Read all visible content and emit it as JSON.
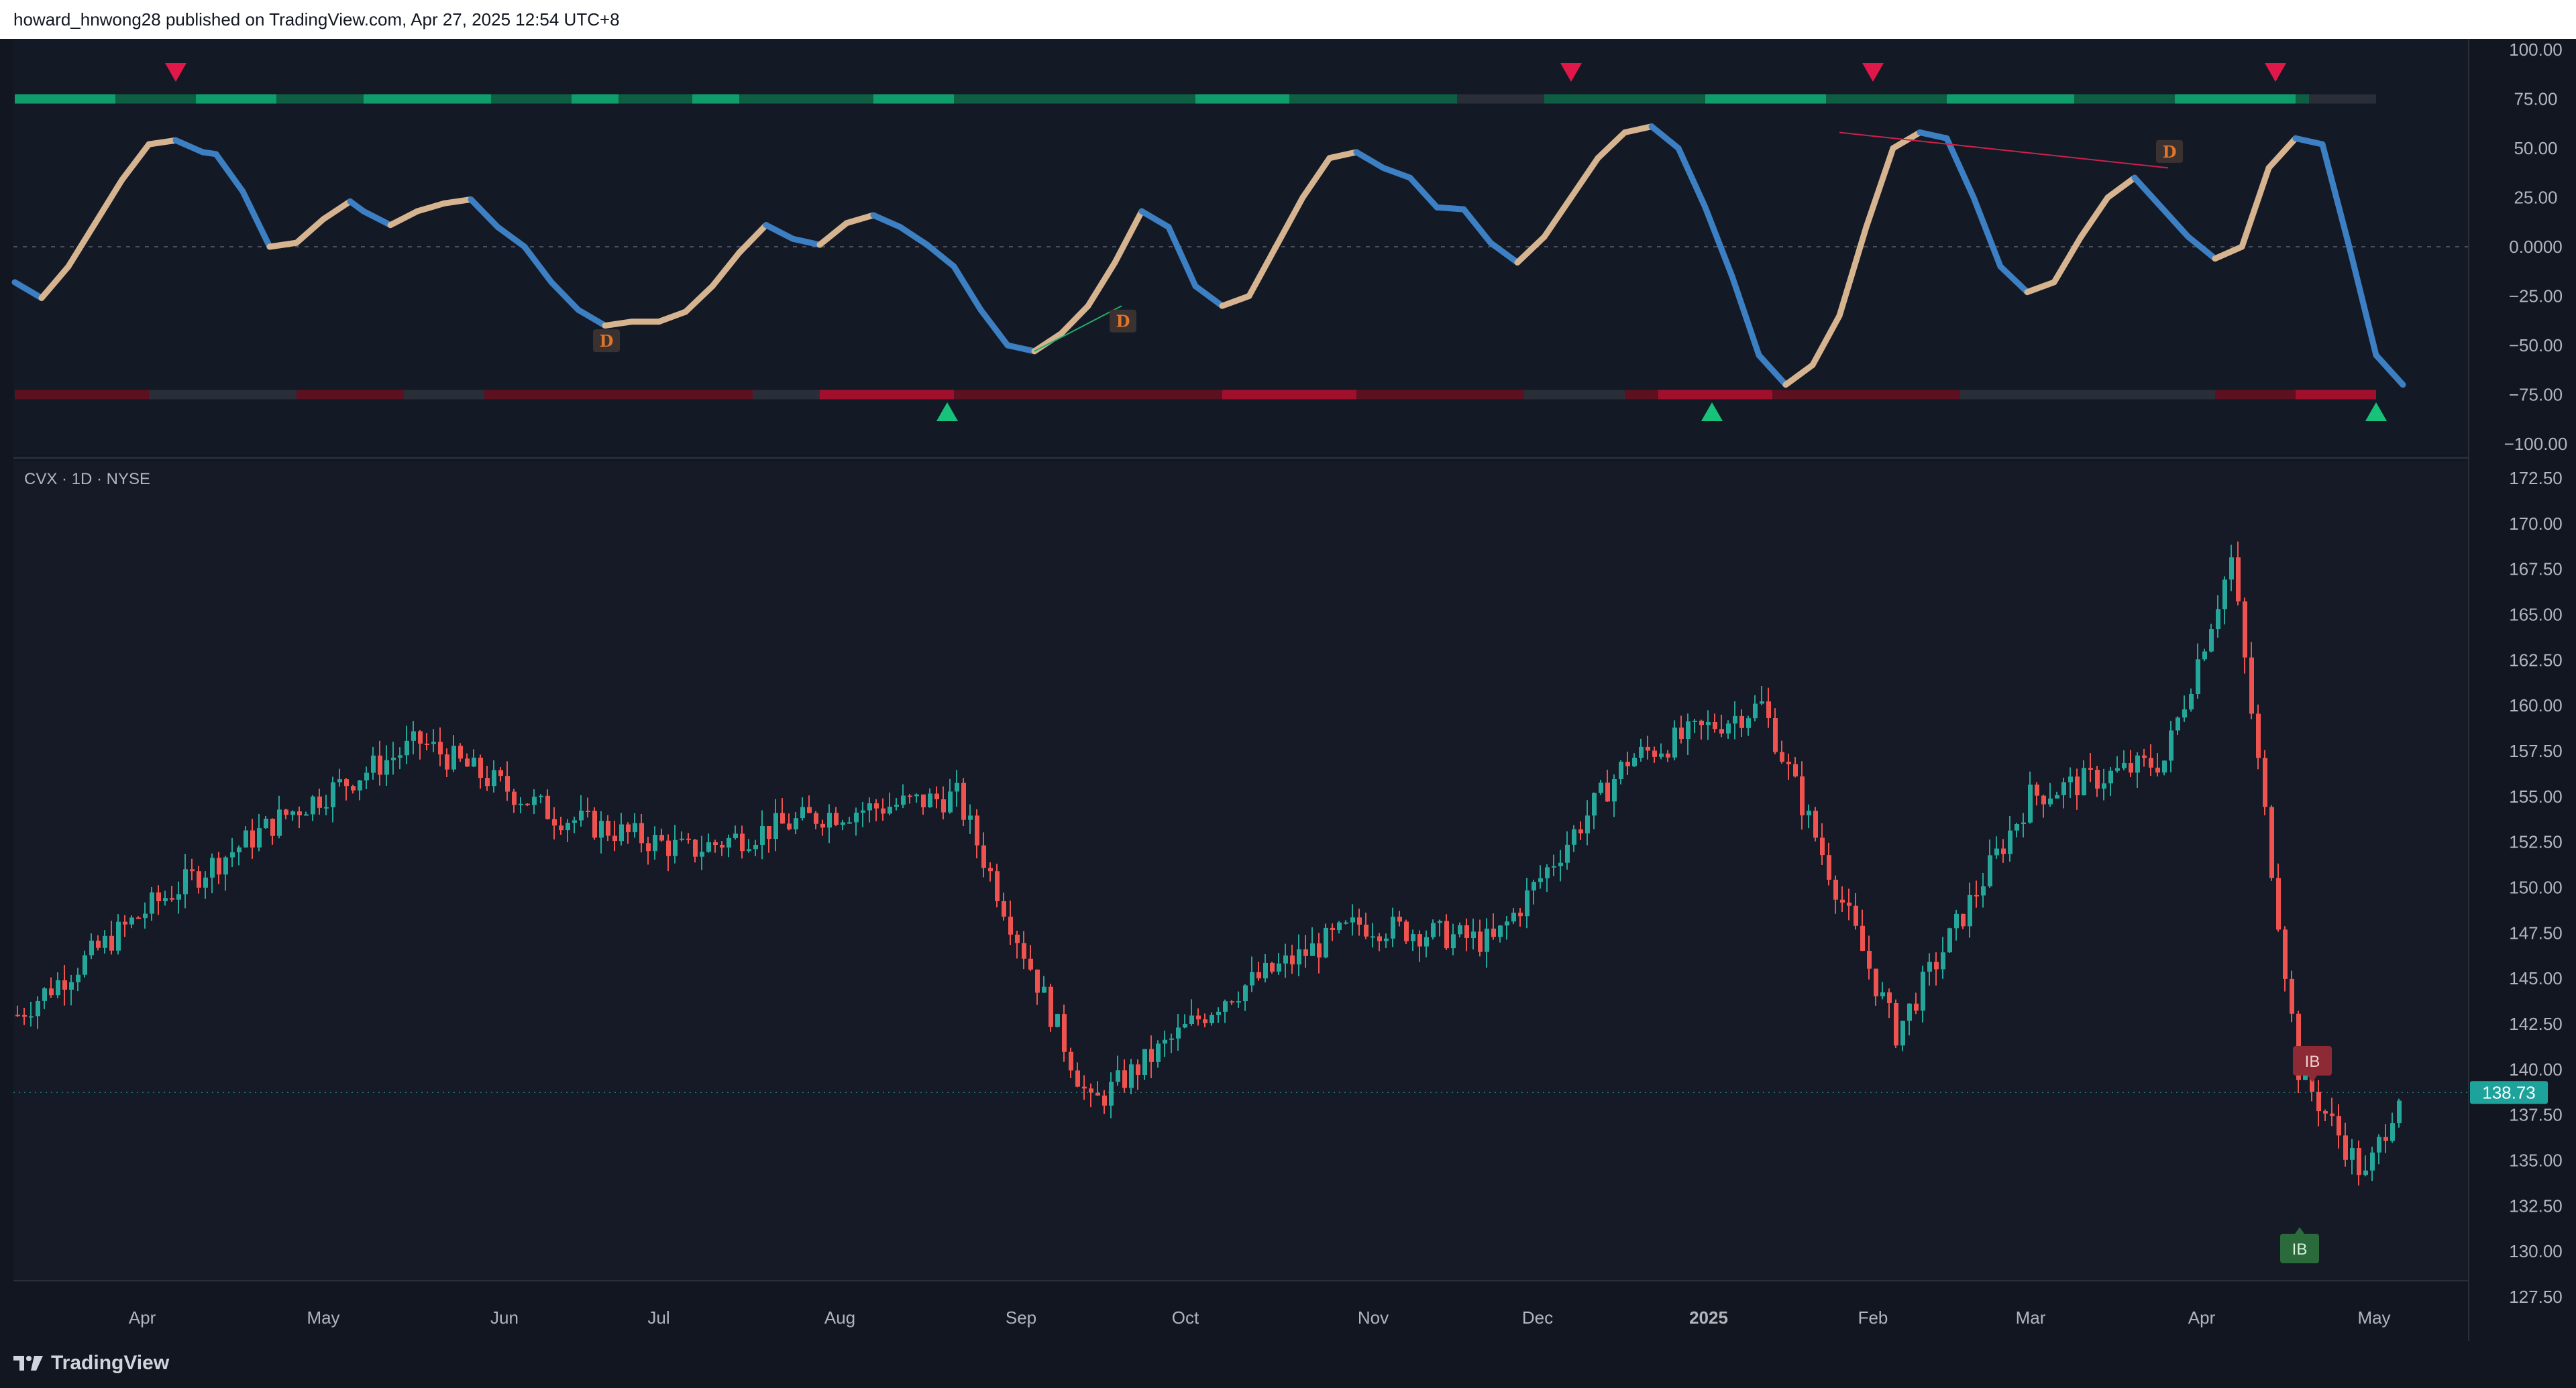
{
  "header": {
    "publisher_line": "howard_hnwong28 published on TradingView.com, Apr 27, 2025 12:54 UTC+8"
  },
  "footer": {
    "brand": "TradingView"
  },
  "colors": {
    "background": "#121620",
    "up_candle": "#26a69a",
    "down_candle": "#ef5350",
    "oscillator_up": "#d6b48f",
    "oscillator_down": "#3c7fc3",
    "band_green_strong": "#0f9d6c",
    "band_green_dark": "#0d5e43",
    "band_red_strong": "#a0102c",
    "band_red_dark": "#5c1020",
    "marker_sell": "#e0184a",
    "marker_buy": "#17c37b",
    "ib_bear": "#8e2a35",
    "ib_bull": "#2b6a3a",
    "last_price": "#1ea39c"
  },
  "chart_data": [
    {
      "type": "line",
      "name": "oscillator",
      "ylim": [
        -100,
        100
      ],
      "ticks": [
        "100.00",
        "75.00",
        "50.00",
        "25.00",
        "0.0000",
        "−25.00",
        "−50.00",
        "−75.00",
        "−100.00"
      ],
      "tick_values": [
        100,
        75,
        50,
        25,
        0,
        -25,
        -50,
        -75,
        -100
      ],
      "zero_line": true,
      "series": [
        {
          "x": [
            0,
            4,
            8,
            12,
            16,
            20,
            24,
            28,
            30,
            34,
            38,
            42,
            46,
            50,
            52,
            56,
            60,
            64,
            68,
            72,
            76,
            80,
            84,
            88,
            92,
            96,
            100,
            104,
            108,
            112,
            116,
            120,
            124,
            128,
            132,
            136,
            140,
            144,
            148,
            152,
            156,
            160,
            164,
            168,
            172,
            176,
            180,
            184,
            188,
            192,
            196,
            200,
            204,
            208,
            212,
            216,
            220,
            224,
            228,
            232,
            236,
            240,
            244,
            248,
            252,
            256,
            260,
            264,
            268,
            272,
            276,
            280,
            284,
            288,
            292,
            296,
            300,
            304,
            308,
            312,
            316,
            320,
            324,
            328,
            332,
            336,
            340,
            344,
            348,
            352,
            356
          ],
          "values": [
            -18,
            -26,
            -10,
            12,
            34,
            52,
            54,
            48,
            47,
            28,
            0,
            2,
            14,
            23,
            18,
            11,
            18,
            22,
            24,
            10,
            0,
            -18,
            -32,
            -40,
            -38,
            -38,
            -33,
            -20,
            -3,
            11,
            4,
            1,
            12,
            16,
            10,
            1,
            -10,
            -32,
            -50,
            -53,
            -44,
            -30,
            -8,
            18,
            10,
            -20,
            -30,
            -25,
            0,
            25,
            45,
            48,
            40,
            35,
            20,
            19,
            2,
            -8,
            5,
            25,
            45,
            58,
            61,
            50,
            20,
            -15,
            -55,
            -70,
            -60,
            -35,
            10,
            50,
            58,
            55,
            25,
            -10,
            -23,
            -18,
            5,
            25,
            35,
            20,
            5,
            -6,
            0,
            40,
            55,
            52,
            0,
            -55,
            -70
          ]
        }
      ],
      "divergence_labels": [
        "D",
        "D",
        "D"
      ],
      "sell_markers": 4,
      "buy_markers": 3
    },
    {
      "type": "candlestick",
      "name": "CVX · 1D · NYSE",
      "title": "CVX · 1D · NYSE",
      "ylim": [
        127.5,
        172.5
      ],
      "ticks": [
        "172.50",
        "170.00",
        "167.50",
        "165.00",
        "162.50",
        "160.00",
        "157.50",
        "155.00",
        "152.50",
        "150.00",
        "147.50",
        "145.00",
        "142.50",
        "140.00",
        "137.50",
        "135.00",
        "132.50",
        "130.00",
        "127.50"
      ],
      "tick_values": [
        172.5,
        170,
        167.5,
        165,
        162.5,
        160,
        157.5,
        155,
        152.5,
        150,
        147.5,
        145,
        142.5,
        140,
        137.5,
        135,
        132.5,
        130,
        127.5
      ],
      "x_labels": [
        "Apr",
        "May",
        "Jun",
        "Jul",
        "Aug",
        "Sep",
        "Oct",
        "Nov",
        "Dec",
        "2025",
        "Feb",
        "Mar",
        "Apr",
        "May"
      ],
      "anchor_x": [
        0,
        20,
        40,
        60,
        80,
        100,
        120,
        140,
        160,
        180,
        200,
        220,
        240,
        260,
        280,
        300,
        320,
        330,
        340,
        350,
        355
      ],
      "anchor_close": [
        143,
        149,
        154,
        158,
        154,
        152,
        154,
        155,
        138,
        144,
        148,
        147,
        157,
        160,
        142,
        155,
        157,
        168,
        140,
        134,
        138.73
      ],
      "last_price": "138.73",
      "ib_labels": [
        "IB",
        "IB"
      ]
    }
  ]
}
